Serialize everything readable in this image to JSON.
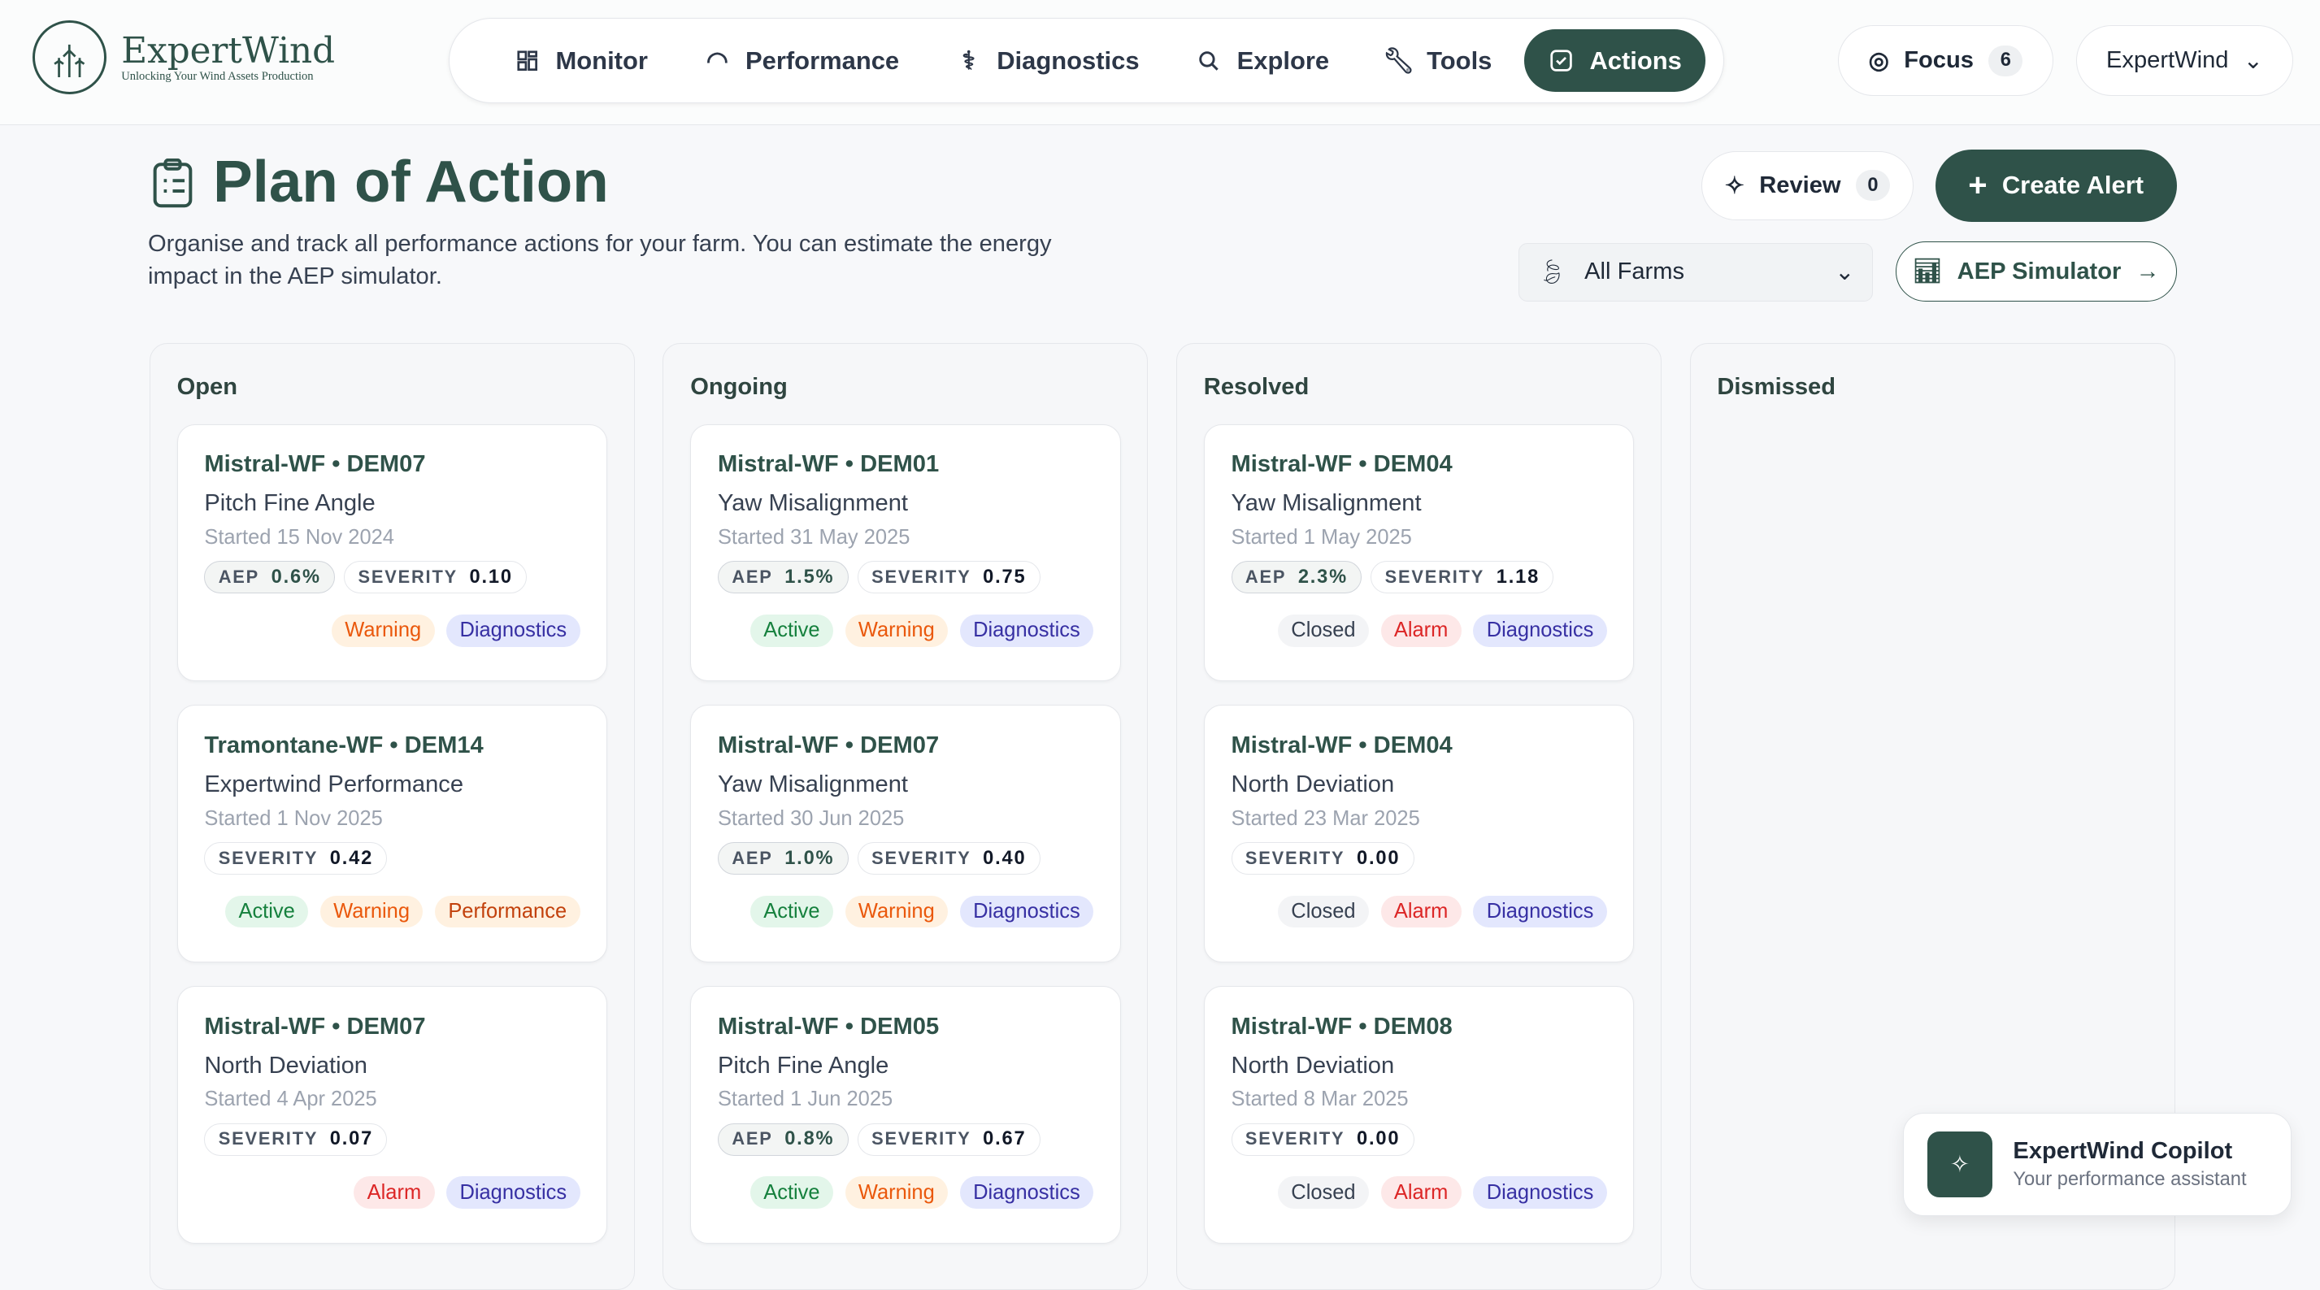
{
  "brand": {
    "name": "ExpertWind",
    "tagline": "Unlocking Your Wind Assets Production"
  },
  "nav": [
    {
      "label": "Monitor",
      "icon": "grid-icon"
    },
    {
      "label": "Performance",
      "icon": "gauge-icon"
    },
    {
      "label": "Diagnostics",
      "icon": "stethoscope-icon"
    },
    {
      "label": "Explore",
      "icon": "search-icon"
    },
    {
      "label": "Tools",
      "icon": "wrench-icon"
    },
    {
      "label": "Actions",
      "icon": "check-square-icon",
      "active": true
    }
  ],
  "focus": {
    "label": "Focus",
    "count": "6"
  },
  "account": {
    "label": "ExpertWind"
  },
  "page": {
    "title": "Plan of Action",
    "description": "Organise and track all performance actions for your farm. You can estimate the energy impact in the AEP simulator."
  },
  "review": {
    "label": "Review",
    "count": "0"
  },
  "create_alert": "Create Alert",
  "farm_select": "All Farms",
  "aep_simulator": "AEP Simulator",
  "colors": {
    "accent": "#2f5249"
  },
  "columns": [
    {
      "title": "Open",
      "cards": [
        {
          "title": "Mistral-WF • DEM07",
          "issue": "Pitch Fine Angle",
          "date": "Started 15 Nov 2024",
          "aep": "0.6%",
          "severity": "0.10",
          "tags": [
            "Warning",
            "Diagnostics"
          ]
        },
        {
          "title": "Tramontane-WF • DEM14",
          "issue": "Expertwind Performance",
          "date": "Started 1 Nov 2025",
          "severity": "0.42",
          "tags": [
            "Active",
            "Warning",
            "Performance"
          ]
        },
        {
          "title": "Mistral-WF • DEM07",
          "issue": "North Deviation",
          "date": "Started 4 Apr 2025",
          "severity": "0.07",
          "tags": [
            "Alarm",
            "Diagnostics"
          ]
        }
      ]
    },
    {
      "title": "Ongoing",
      "cards": [
        {
          "title": "Mistral-WF • DEM01",
          "issue": "Yaw Misalignment",
          "date": "Started 31 May 2025",
          "aep": "1.5%",
          "severity": "0.75",
          "tags": [
            "Active",
            "Warning",
            "Diagnostics"
          ]
        },
        {
          "title": "Mistral-WF • DEM07",
          "issue": "Yaw Misalignment",
          "date": "Started 30 Jun 2025",
          "aep": "1.0%",
          "severity": "0.40",
          "tags": [
            "Active",
            "Warning",
            "Diagnostics"
          ]
        },
        {
          "title": "Mistral-WF • DEM05",
          "issue": "Pitch Fine Angle",
          "date": "Started 1 Jun 2025",
          "aep": "0.8%",
          "severity": "0.67",
          "tags": [
            "Active",
            "Warning",
            "Diagnostics"
          ]
        }
      ]
    },
    {
      "title": "Resolved",
      "cards": [
        {
          "title": "Mistral-WF • DEM04",
          "issue": "Yaw Misalignment",
          "date": "Started 1 May 2025",
          "aep": "2.3%",
          "severity": "1.18",
          "tags": [
            "Closed",
            "Alarm",
            "Diagnostics"
          ]
        },
        {
          "title": "Mistral-WF • DEM04",
          "issue": "North Deviation",
          "date": "Started 23 Mar 2025",
          "severity": "0.00",
          "tags": [
            "Closed",
            "Alarm",
            "Diagnostics"
          ]
        },
        {
          "title": "Mistral-WF • DEM08",
          "issue": "North Deviation",
          "date": "Started 8 Mar 2025",
          "severity": "0.00",
          "tags": [
            "Closed",
            "Alarm",
            "Diagnostics"
          ]
        }
      ]
    },
    {
      "title": "Dismissed",
      "cards": []
    }
  ],
  "metric_labels": {
    "aep": "AEP",
    "severity": "SEVERITY"
  },
  "copilot": {
    "title": "ExpertWind Copilot",
    "subtitle": "Your performance assistant"
  }
}
